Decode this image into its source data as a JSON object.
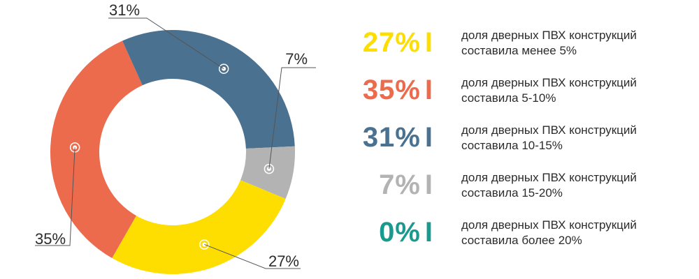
{
  "chart_data": {
    "type": "pie",
    "subtype": "donut",
    "slices": [
      {
        "label": "27%",
        "value": 27,
        "color": "#FEDD00"
      },
      {
        "label": "35%",
        "value": 35,
        "color": "#EC6B4D"
      },
      {
        "label": "31%",
        "value": 31,
        "color": "#4A7190"
      },
      {
        "label": "7%",
        "value": 7,
        "color": "#B3B3B3"
      },
      {
        "label": "0%",
        "value": 0,
        "color": "#1A9A8E"
      }
    ]
  },
  "legend": {
    "items": [
      {
        "percent": "27%",
        "bar": "I",
        "color": "#FEDD00",
        "line1": "доля дверных ПВХ конструкций",
        "line2": "составила менее 5%"
      },
      {
        "percent": "35%",
        "bar": "I",
        "color": "#EC6B4D",
        "line1": "доля дверных ПВХ конструкций",
        "line2": "составила 5-10%"
      },
      {
        "percent": "31%",
        "bar": "I",
        "color": "#4A7190",
        "line1": "доля дверных ПВХ конструкций",
        "line2": "составила 10-15%"
      },
      {
        "percent": "7%",
        "bar": "I",
        "color": "#B3B3B3",
        "line1": "доля дверных ПВХ конструкций",
        "line2": "составила 15-20%"
      },
      {
        "percent": "0%",
        "bar": "I",
        "color": "#1A9A8E",
        "line1": "доля дверных ПВХ конструкций",
        "line2": "составила более 20%"
      }
    ]
  }
}
